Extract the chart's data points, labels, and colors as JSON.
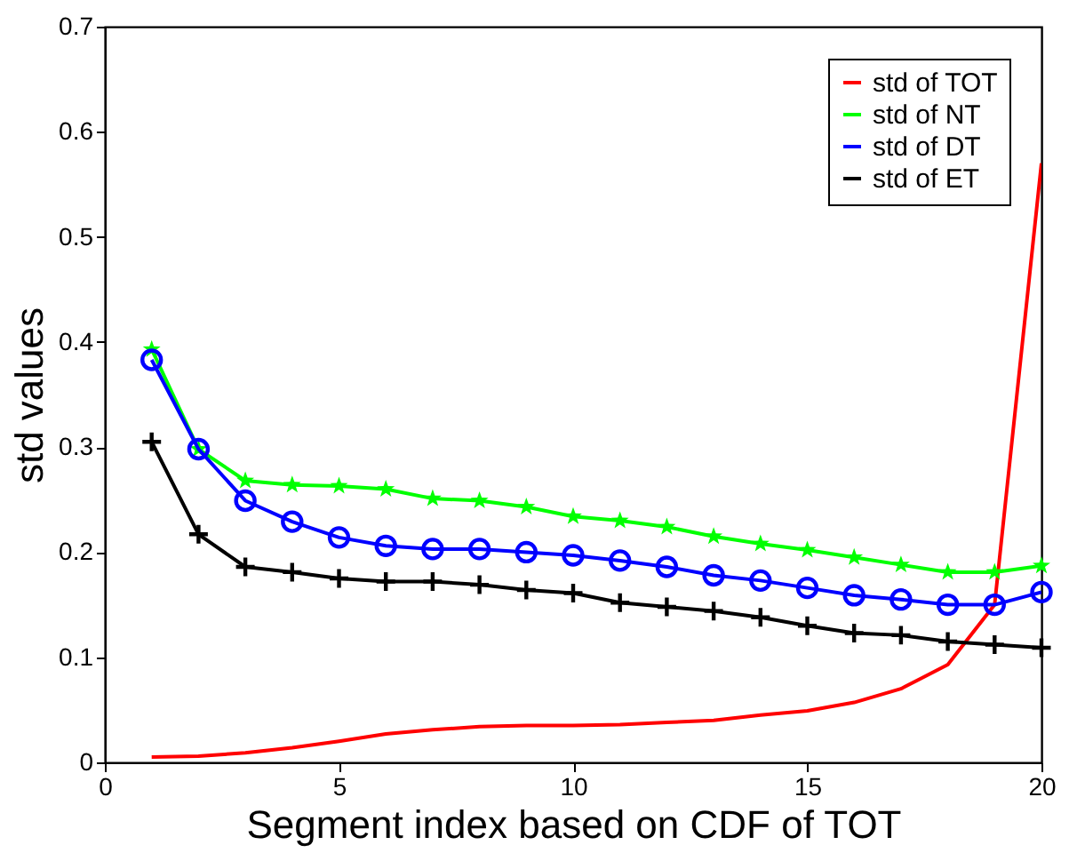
{
  "chart_data": {
    "type": "line",
    "xlabel": "Segment index based on CDF of TOT",
    "ylabel": "std values",
    "x": [
      1,
      2,
      3,
      4,
      5,
      6,
      7,
      8,
      9,
      10,
      11,
      12,
      13,
      14,
      15,
      16,
      17,
      18,
      19,
      20
    ],
    "xlim": [
      0,
      20
    ],
    "xticks": [
      0,
      5,
      10,
      15,
      20
    ],
    "ylim": [
      0,
      0.7
    ],
    "yticks": [
      0,
      0.1,
      0.2,
      0.3,
      0.4,
      0.5,
      0.6,
      0.7
    ],
    "grid": false,
    "legend": "top right",
    "line_style": "solid",
    "series": [
      {
        "name": "std of TOT",
        "color": "#ff0000",
        "marker": "none",
        "values": [
          0.005,
          0.006,
          0.009,
          0.014,
          0.02,
          0.027,
          0.031,
          0.034,
          0.035,
          0.035,
          0.036,
          0.038,
          0.04,
          0.045,
          0.049,
          0.057,
          0.07,
          0.093,
          0.15,
          0.57
        ]
      },
      {
        "name": "std of NT",
        "color": "#00ff00",
        "marker": "star",
        "values": [
          0.393,
          0.298,
          0.268,
          0.264,
          0.263,
          0.26,
          0.251,
          0.249,
          0.243,
          0.234,
          0.23,
          0.224,
          0.215,
          0.208,
          0.202,
          0.195,
          0.188,
          0.181,
          0.181,
          0.187
        ]
      },
      {
        "name": "std of DT",
        "color": "#0000ff",
        "marker": "circle",
        "values": [
          0.383,
          0.298,
          0.249,
          0.229,
          0.214,
          0.206,
          0.203,
          0.203,
          0.2,
          0.197,
          0.192,
          0.186,
          0.178,
          0.173,
          0.166,
          0.159,
          0.155,
          0.15,
          0.15,
          0.162
        ]
      },
      {
        "name": "std of ET",
        "color": "#000000",
        "marker": "cross",
        "values": [
          0.305,
          0.217,
          0.186,
          0.181,
          0.175,
          0.172,
          0.172,
          0.169,
          0.164,
          0.161,
          0.152,
          0.148,
          0.144,
          0.138,
          0.13,
          0.123,
          0.121,
          0.115,
          0.112,
          0.109
        ]
      }
    ]
  }
}
